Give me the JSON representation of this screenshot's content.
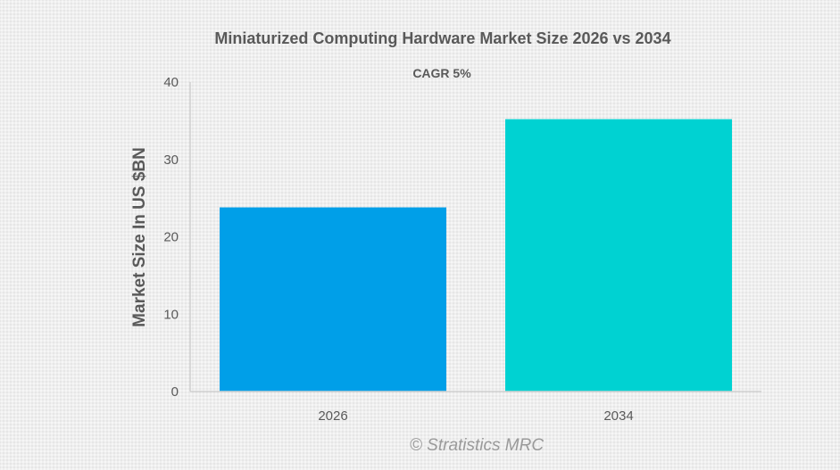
{
  "chart_data": {
    "type": "bar",
    "title": "Miniaturized Computing Hardware Market Size 2026 vs 2034",
    "subtitle": "CAGR 5%",
    "xlabel": "",
    "ylabel": "Market Size In US $BN",
    "categories": [
      "2026",
      "2034"
    ],
    "values": [
      23.8,
      35.2
    ],
    "colors": [
      "#009fe8",
      "#00d2d2"
    ],
    "ylim": [
      0,
      40
    ],
    "yticks": [
      "0",
      "10",
      "20",
      "30",
      "40"
    ],
    "grid": false,
    "legend": "none",
    "watermark": "© Stratistics MRC"
  }
}
